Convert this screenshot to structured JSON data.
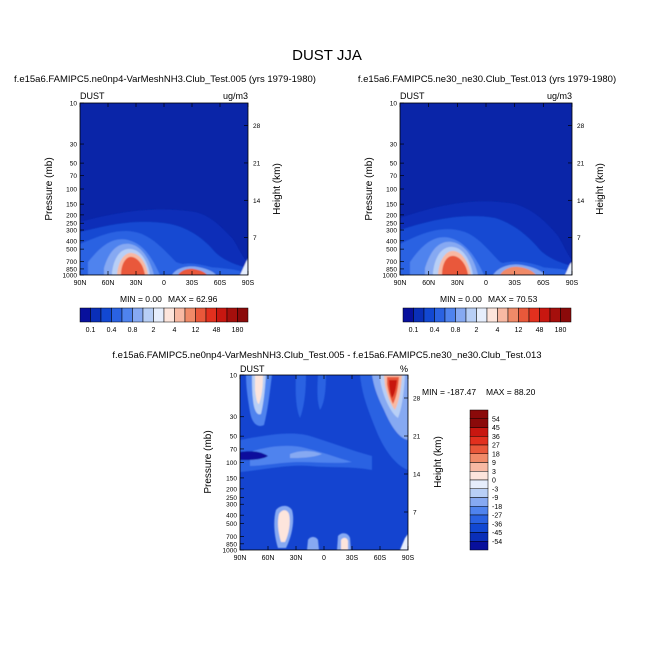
{
  "figure": {
    "title": "DUST JJA"
  },
  "colors": {
    "c_neg54": "#08109c",
    "c_neg45": "#0a2fb8",
    "c_neg36": "#1248d2",
    "c_neg27": "#2a62e2",
    "c_neg18": "#4f83ee",
    "c_neg9": "#86a9f2",
    "c_neg3": "#b8cff6",
    "c_0": "#e6eefc",
    "c_3": "#fde5dc",
    "c_9": "#f8b9a3",
    "c_18": "#f08a68",
    "c_27": "#e9583a",
    "c_36": "#e2301e",
    "c_45": "#c81710",
    "c_54": "#8b0a0a",
    "abs_bg": "#0a25a8",
    "diff_bg": "#1444d0"
  },
  "panel_axes": {
    "ylabel_left": "Pressure (mb)",
    "ylabel_right": "Height (km)",
    "x_ticks": [
      "90N",
      "60N",
      "30N",
      "0",
      "30S",
      "60S",
      "90S"
    ],
    "y_ticks_left": [
      "10",
      "30",
      "50",
      "70",
      "100",
      "150",
      "200",
      "250",
      "300",
      "400",
      "500",
      "700",
      "850",
      "1000"
    ],
    "y_ticks_right": [
      "28",
      "21",
      "14",
      "7"
    ]
  },
  "abs_colorbar": {
    "labels": [
      "0.1",
      "0.4",
      "0.8",
      "2",
      "4",
      "12",
      "48",
      "180"
    ]
  },
  "diff_colorbar": {
    "labels": [
      "54",
      "45",
      "36",
      "27",
      "18",
      "9",
      "3",
      "0",
      "-3",
      "-9",
      "-18",
      "-27",
      "-36",
      "-45",
      "-54"
    ]
  },
  "chart_data": [
    {
      "type": "heatmap",
      "title": "f.e15a6.FAMIPC5.ne0np4-VarMeshNH3.Club_Test.005 (yrs 1979-1980)",
      "variable": "DUST",
      "units": "ug/m3",
      "xlabel": "",
      "ylabel": "Pressure (mb)",
      "ylabel_right": "Height (km)",
      "xlim": [
        90,
        -90
      ],
      "ylim": [
        1000,
        10
      ],
      "y_scale": "log",
      "min_label": "MIN =   0.00",
      "max_label": "MAX =  62.96",
      "min": 0.0,
      "max": 62.96
    },
    {
      "type": "heatmap",
      "title": "f.e15a6.FAMIPC5.ne30_ne30.Club_Test.013 (yrs 1979-1980)",
      "variable": "DUST",
      "units": "ug/m3",
      "xlabel": "",
      "ylabel": "Pressure (mb)",
      "ylabel_right": "Height (km)",
      "xlim": [
        90,
        -90
      ],
      "ylim": [
        1000,
        10
      ],
      "y_scale": "log",
      "min_label": "MIN =   0.00",
      "max_label": "MAX =  70.53",
      "min": 0.0,
      "max": 70.53
    },
    {
      "type": "heatmap",
      "title": "f.e15a6.FAMIPC5.ne0np4-VarMeshNH3.Club_Test.005 - f.e15a6.FAMIPC5.ne30_ne30.Club_Test.013",
      "variable": "DUST",
      "units": "%",
      "xlabel": "",
      "ylabel": "Pressure (mb)",
      "ylabel_right": "Height (km)",
      "xlim": [
        90,
        -90
      ],
      "ylim": [
        1000,
        10
      ],
      "y_scale": "log",
      "min_label": "MIN = -187.47",
      "max_label": "MAX =  88.20",
      "min": -187.47,
      "max": 88.2
    }
  ]
}
